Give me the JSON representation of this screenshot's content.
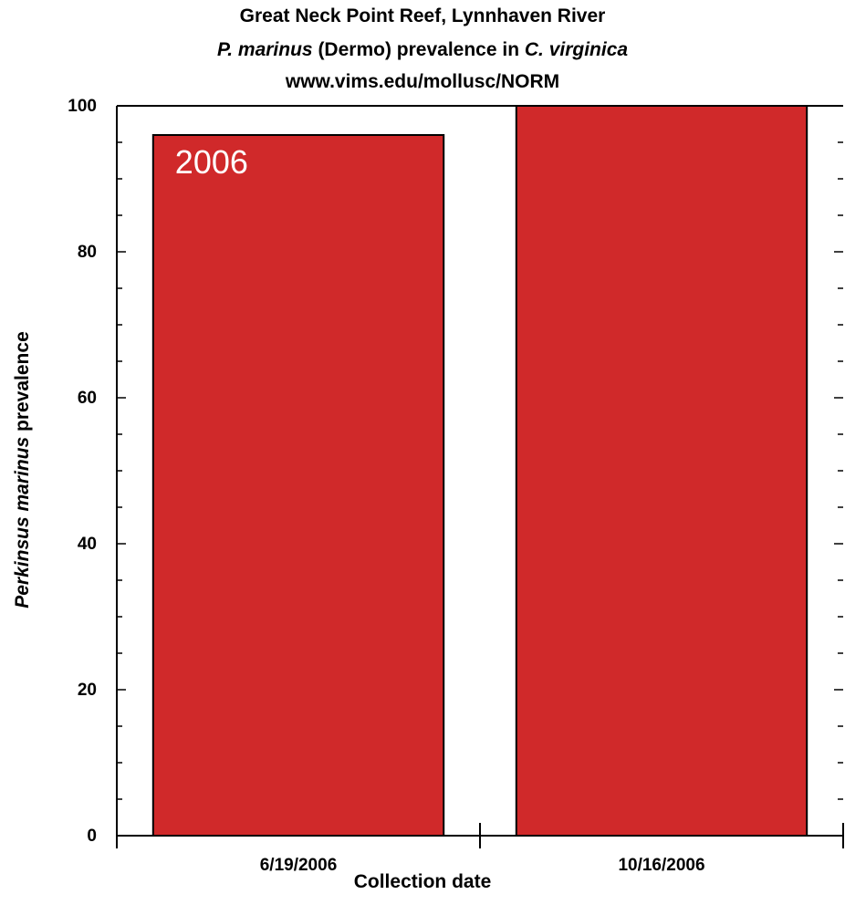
{
  "chart_data": {
    "type": "bar",
    "title_line1": "Great Neck Point Reef, Lynnhaven River",
    "title_line2_a": "P. marinus",
    "title_line2_b": " (Dermo) prevalence in ",
    "title_line2_c": "C. virginica",
    "title_line3": "www.vims.edu/mollusc/NORM",
    "ylabel_italic": "Perkinsus marinus",
    "ylabel_rest": " prevalence",
    "xlabel": "Collection date",
    "categories": [
      "6/19/2006",
      "10/16/2006"
    ],
    "values": [
      96,
      100
    ],
    "ylim": [
      0,
      100
    ],
    "yticks": [
      0,
      20,
      40,
      60,
      80,
      100
    ],
    "annotation": "2006",
    "bar_color": "#d0292a",
    "grid": false
  }
}
